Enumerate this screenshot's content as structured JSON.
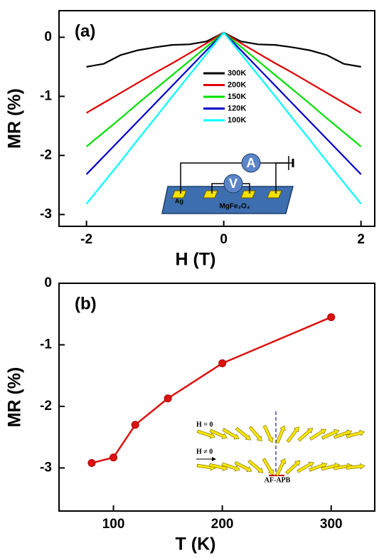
{
  "chart_data": [
    {
      "type": "line",
      "panel_label": "(a)",
      "xlabel": "H (T)",
      "ylabel": "MR (%)",
      "x": [
        -2,
        -1.75,
        -1.5,
        -1.25,
        -1,
        -0.75,
        -0.5,
        -0.25,
        0,
        0.25,
        0.5,
        0.75,
        1,
        1.25,
        1.5,
        1.75,
        2
      ],
      "series": [
        {
          "name": "300K",
          "color": "#000000",
          "values": [
            -0.5,
            -0.45,
            -0.3,
            -0.22,
            -0.17,
            -0.13,
            -0.12,
            -0.07,
            0.08,
            -0.07,
            -0.12,
            -0.13,
            -0.17,
            -0.22,
            -0.3,
            -0.45,
            -0.5
          ]
        },
        {
          "name": "200K",
          "color": "#e00000",
          "values": [
            -1.28,
            -1.11,
            -0.94,
            -0.77,
            -0.6,
            -0.44,
            -0.27,
            -0.1,
            0.08,
            -0.1,
            -0.27,
            -0.44,
            -0.6,
            -0.77,
            -0.94,
            -1.11,
            -1.28
          ]
        },
        {
          "name": "150K",
          "color": "#00e000",
          "values": [
            -1.85,
            -1.61,
            -1.37,
            -1.12,
            -0.88,
            -0.64,
            -0.4,
            -0.16,
            0.08,
            -0.16,
            -0.4,
            -0.64,
            -0.88,
            -1.12,
            -1.37,
            -1.61,
            -1.85
          ]
        },
        {
          "name": "120K",
          "color": "#0000cc",
          "values": [
            -2.32,
            -2.02,
            -1.72,
            -1.42,
            -1.12,
            -0.82,
            -0.52,
            -0.22,
            0.08,
            -0.22,
            -0.52,
            -0.82,
            -1.12,
            -1.42,
            -1.72,
            -2.02,
            -2.32
          ]
        },
        {
          "name": "100K",
          "color": "#00ffff",
          "values": [
            -2.82,
            -2.46,
            -2.1,
            -1.73,
            -1.37,
            -1.0,
            -0.64,
            -0.28,
            0.08,
            -0.28,
            -0.64,
            -1.0,
            -1.37,
            -1.73,
            -2.1,
            -2.46,
            -2.82
          ]
        }
      ],
      "xlim": [
        -2.4,
        2.2
      ],
      "ylim": [
        -3.2,
        0.45
      ],
      "xticks": [
        -2,
        0,
        2
      ],
      "yticks": [
        0,
        -1,
        -2,
        -3
      ],
      "legend": "upper center",
      "inset_labels": [
        "A",
        "V",
        "Ag",
        "MgFe₂O₄"
      ]
    },
    {
      "type": "line",
      "markers": true,
      "panel_label": "(b)",
      "xlabel": "T (K)",
      "ylabel": "MR (%)",
      "x": [
        80,
        100,
        120,
        150,
        200,
        300
      ],
      "series": [
        {
          "color": "#dd1111",
          "values": [
            -2.92,
            -2.83,
            -2.3,
            -1.87,
            -1.3,
            -0.55
          ]
        }
      ],
      "xlim": [
        50,
        340
      ],
      "ylim": [
        -3.7,
        0
      ],
      "xticks": [
        100,
        200,
        300
      ],
      "yticks": [
        0,
        -1,
        -2,
        -3
      ],
      "inset_labels": [
        "H = 0",
        "H ≠ 0",
        "AF-APB"
      ]
    }
  ]
}
